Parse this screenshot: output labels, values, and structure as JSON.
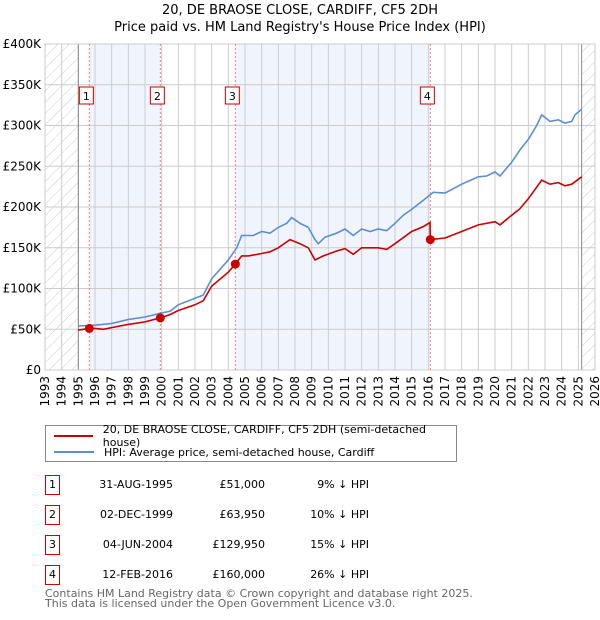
{
  "chart_data": {
    "type": "line",
    "title": "20, DE BRAOSE CLOSE, CARDIFF, CF5 2DH",
    "subtitle": "Price paid vs. HM Land Registry's House Price Index (HPI)",
    "xlim": [
      1993,
      2026
    ],
    "ylim": [
      0,
      400000
    ],
    "yticks": [
      {
        "v": 0,
        "label": "£0"
      },
      {
        "v": 50000,
        "label": "£50K"
      },
      {
        "v": 100000,
        "label": "£100K"
      },
      {
        "v": 150000,
        "label": "£150K"
      },
      {
        "v": 200000,
        "label": "£200K"
      },
      {
        "v": 250000,
        "label": "£250K"
      },
      {
        "v": 300000,
        "label": "£300K"
      },
      {
        "v": 350000,
        "label": "£350K"
      },
      {
        "v": 400000,
        "label": "£400K"
      }
    ],
    "xticks": [
      "1993",
      "1994",
      "1995",
      "1996",
      "1997",
      "1998",
      "1999",
      "2000",
      "2001",
      "2002",
      "2003",
      "2004",
      "2005",
      "2006",
      "2007",
      "2008",
      "2009",
      "2010",
      "2011",
      "2012",
      "2013",
      "2014",
      "2015",
      "2016",
      "2017",
      "2018",
      "2019",
      "2020",
      "2021",
      "2022",
      "2023",
      "2024",
      "2025",
      "2026"
    ],
    "data_range": [
      1995,
      2025.2
    ],
    "series": [
      {
        "name": "20, DE BRAOSE CLOSE, CARDIFF, CF5 2DH (semi-detached house)",
        "color": "#cc0000",
        "x": [
          1995,
          1995.66,
          1996,
          1996.5,
          1997,
          1998,
          1999,
          1999.92,
          2000.5,
          2001,
          2002,
          2002.5,
          2003,
          2004,
          2004.42,
          2004.8,
          2005.2,
          2006,
          2006.5,
          2007,
          2007.7,
          2008.3,
          2008.8,
          2009.2,
          2009.7,
          2010.5,
          2011,
          2011.5,
          2012,
          2013,
          2013.5,
          2014,
          2015,
          2015.7,
          2016.1,
          2016.12,
          2017,
          2018,
          2019,
          2020,
          2020.3,
          2021,
          2021.5,
          2022,
          2022.8,
          2023.3,
          2023.8,
          2024.2,
          2024.6,
          2025.2
        ],
        "y": [
          49000,
          51000,
          51000,
          50000,
          52000,
          56000,
          59000,
          63950,
          68000,
          73000,
          80000,
          85000,
          103000,
          120000,
          129950,
          140000,
          140000,
          143000,
          145000,
          150000,
          160000,
          155000,
          150000,
          135000,
          140000,
          146000,
          149000,
          142000,
          150000,
          150000,
          148000,
          155000,
          170000,
          176000,
          181000,
          160000,
          162000,
          170000,
          178000,
          182000,
          178000,
          190000,
          198000,
          210000,
          233000,
          228000,
          230000,
          226000,
          228000,
          237000
        ]
      },
      {
        "name": "HPI: Average price, semi-detached house, Cardiff",
        "color": "#5b8fd0",
        "x": [
          1995,
          1996,
          1997,
          1998,
          1999,
          2000,
          2000.5,
          2001,
          2002,
          2002.5,
          2003,
          2004,
          2004.5,
          2004.8,
          2005.5,
          2006,
          2006.5,
          2007,
          2007.5,
          2007.8,
          2008.3,
          2008.8,
          2009.2,
          2009.4,
          2009.8,
          2010.5,
          2011,
          2011.5,
          2012,
          2012.5,
          2013,
          2013.5,
          2014,
          2014.5,
          2015,
          2016,
          2016.3,
          2017,
          2018,
          2019,
          2019.5,
          2020,
          2020.3,
          2021,
          2021.5,
          2022,
          2022.5,
          2022.8,
          2023.3,
          2023.8,
          2024.2,
          2024.6,
          2024.8,
          2025.2
        ],
        "y": [
          54000,
          55000,
          57000,
          62000,
          65000,
          70000,
          72000,
          80000,
          88000,
          92000,
          112000,
          135000,
          150000,
          165000,
          165000,
          170000,
          168000,
          175000,
          180000,
          187000,
          180000,
          175000,
          160000,
          155000,
          163000,
          168000,
          173000,
          165000,
          173000,
          170000,
          173000,
          171000,
          180000,
          190000,
          197000,
          213000,
          218000,
          217000,
          228000,
          237000,
          238000,
          243000,
          238000,
          255000,
          270000,
          283000,
          300000,
          313000,
          305000,
          307000,
          303000,
          305000,
          313000,
          320000
        ]
      }
    ],
    "sales": [
      {
        "num": "1",
        "x": 1995.66,
        "y": 51000
      },
      {
        "num": "2",
        "x": 1999.92,
        "y": 63950
      },
      {
        "num": "3",
        "x": 2004.42,
        "y": 129950
      },
      {
        "num": "4",
        "x": 2016.12,
        "y": 160000
      }
    ]
  },
  "legend": {
    "red": "20, DE BRAOSE CLOSE, CARDIFF, CF5 2DH (semi-detached house)",
    "blue": "HPI: Average price, semi-detached house, Cardiff"
  },
  "table": [
    {
      "num": "1",
      "date": "31-AUG-1995",
      "price": "£51,000",
      "hpi": "9% ↓ HPI"
    },
    {
      "num": "2",
      "date": "02-DEC-1999",
      "price": "£63,950",
      "hpi": "10% ↓ HPI"
    },
    {
      "num": "3",
      "date": "04-JUN-2004",
      "price": "£129,950",
      "hpi": "15% ↓ HPI"
    },
    {
      "num": "4",
      "date": "12-FEB-2016",
      "price": "£160,000",
      "hpi": "26% ↓ HPI"
    }
  ],
  "footer": {
    "line1": "Contains HM Land Registry data © Crown copyright and database right 2025.",
    "line2": "This data is licensed under the Open Government Licence v3.0."
  }
}
